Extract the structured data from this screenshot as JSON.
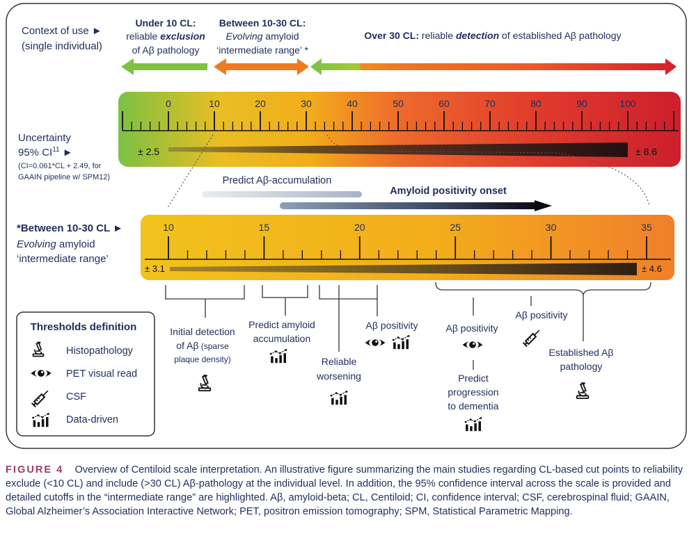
{
  "context": {
    "label_line1": "Context of use ►",
    "label_line2": "(single individual)",
    "under10_title": "Under 10 CL:",
    "under10_line2_pre": "reliable ",
    "under10_line2_em": "exclusion",
    "under10_line3": "of Aβ pathology",
    "between_title": "Between 10-30 CL:",
    "between_line2_em": "Evolving",
    "between_line2_post": " amyloid",
    "between_line3": "‘intermediate range’ *",
    "over30_title": "Over 30 CL:",
    "over30_pre": " reliable ",
    "over30_em": "detection",
    "over30_post": " of established Aβ pathology"
  },
  "uncertainty": {
    "line1": "Uncertainty",
    "line2": "95% CI",
    "line2_sup": "11",
    "line2_arrow": " ►",
    "line3": "(CI=0.061*CL + 2.49, for",
    "line4": "GAAIN pipeline w/ SPM12)"
  },
  "main_scale": {
    "ticks": [
      "0",
      "10",
      "20",
      "30",
      "40",
      "50",
      "60",
      "70",
      "80",
      "90",
      "100"
    ],
    "ci_left": "± 2.5",
    "ci_right": "± 8.6"
  },
  "bars": {
    "predict_accumulation": "Predict Aβ-accumulation",
    "positivity_onset": "Amyloid positivity onset"
  },
  "zoom": {
    "label_line1": "*Between 10-30 CL ►",
    "label_line2_em": "Evolving",
    "label_line2_post": " amyloid",
    "label_line3": "‘intermediate range’",
    "ticks": [
      "10",
      "15",
      "20",
      "25",
      "30",
      "35"
    ],
    "ci_left": "± 3.1",
    "ci_right": "± 4.6"
  },
  "cutpoints": {
    "initial_1": "Initial detection",
    "initial_2_main": "of Aβ",
    "initial_2_small": " (sparse",
    "initial_3_small": "plaque density)",
    "predict_1": "Predict amyloid",
    "predict_2": "accumulation",
    "reliable_1": "Reliable",
    "reliable_2": "worsening",
    "ab_pos_1": "Aβ positivity",
    "ab_pos_2": "Aβ positivity",
    "ab_pos_3": "Aβ positivity",
    "progression_1": "Predict",
    "progression_2": "progression",
    "progression_3": "to dementia",
    "established_1": "Established Aβ",
    "established_2": "pathology"
  },
  "legend": {
    "title": "Thresholds definition",
    "items": [
      "Histopathology",
      "PET visual read",
      "CSF",
      "Data-driven"
    ]
  },
  "caption": {
    "figure_label": "FIGURE 4",
    "text": "Overview of Centiloid scale interpretation. An illustrative figure summarizing the main studies regarding CL-based cut points to reliability exclude (<10 CL) and include (>30 CL) Aβ-pathology at the individual level. In addition, the 95% confidence interval across the scale is provided and detailed cutoffs in the “intermediate range” are highlighted. Aβ, amyloid-beta; CL, Centiloid; CI, confidence interval; CSF, cerebrospinal fluid; GAAIN, Global Alzheimer’s Association Interactive Network; PET, positron emission tomography; SPM, Statistical Parametric Mapping."
  },
  "icons": [
    "microscope-icon",
    "eye-icon",
    "syringe-icon",
    "data-driven-icon"
  ],
  "colors": {
    "navy": "#1f2d5c",
    "green": "#7ac143",
    "yellow": "#f2b31c",
    "orange": "#f08a24",
    "red": "#d8202a"
  }
}
